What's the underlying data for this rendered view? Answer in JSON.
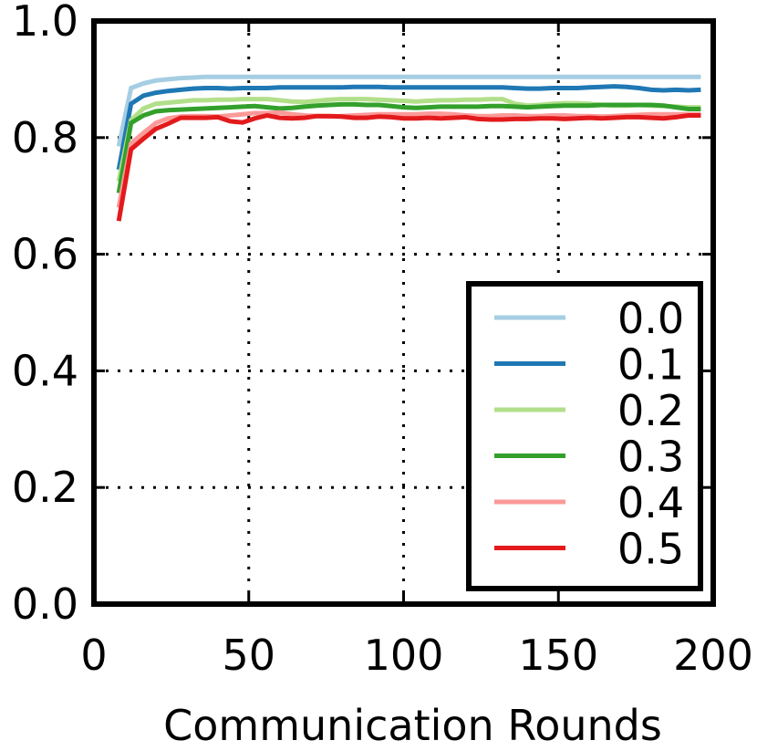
{
  "chart_data": {
    "type": "line",
    "title": "",
    "xlabel": "Communication Rounds",
    "ylabel": "",
    "xlim": [
      0,
      200
    ],
    "ylim": [
      0.0,
      1.0
    ],
    "x_ticks": [
      0,
      50,
      100,
      150,
      200
    ],
    "y_ticks": [
      0.0,
      0.2,
      0.4,
      0.6,
      0.8,
      1.0
    ],
    "x_tick_labels": [
      "0",
      "50",
      "100",
      "150",
      "200"
    ],
    "y_tick_labels": [
      "0.0",
      "0.2",
      "0.4",
      "0.6",
      "0.8",
      "1.0"
    ],
    "grid": true,
    "legend_position": "lower-right",
    "x": [
      8,
      12,
      16,
      20,
      24,
      28,
      32,
      36,
      40,
      44,
      48,
      52,
      56,
      60,
      64,
      68,
      72,
      76,
      80,
      84,
      88,
      92,
      96,
      100,
      104,
      108,
      112,
      116,
      120,
      124,
      128,
      132,
      136,
      140,
      144,
      148,
      152,
      156,
      160,
      164,
      168,
      172,
      176,
      180,
      184,
      188,
      192,
      196
    ],
    "series": [
      {
        "name": "0.0",
        "color": "#a6cee3",
        "values": [
          0.785,
          0.885,
          0.893,
          0.898,
          0.9,
          0.902,
          0.903,
          0.904,
          0.904,
          0.904,
          0.904,
          0.904,
          0.904,
          0.904,
          0.904,
          0.904,
          0.904,
          0.904,
          0.904,
          0.904,
          0.904,
          0.904,
          0.904,
          0.904,
          0.904,
          0.904,
          0.904,
          0.904,
          0.904,
          0.904,
          0.904,
          0.904,
          0.904,
          0.904,
          0.904,
          0.904,
          0.904,
          0.904,
          0.904,
          0.904,
          0.904,
          0.904,
          0.904,
          0.904,
          0.904,
          0.904,
          0.904,
          0.904
        ]
      },
      {
        "name": "0.1",
        "color": "#1f78b4",
        "values": [
          0.745,
          0.858,
          0.872,
          0.877,
          0.88,
          0.882,
          0.884,
          0.885,
          0.885,
          0.884,
          0.885,
          0.885,
          0.885,
          0.886,
          0.886,
          0.886,
          0.886,
          0.886,
          0.886,
          0.887,
          0.887,
          0.887,
          0.886,
          0.886,
          0.886,
          0.886,
          0.886,
          0.886,
          0.886,
          0.886,
          0.886,
          0.886,
          0.885,
          0.884,
          0.884,
          0.885,
          0.885,
          0.885,
          0.886,
          0.887,
          0.888,
          0.887,
          0.885,
          0.882,
          0.881,
          0.882,
          0.881,
          0.882
        ]
      },
      {
        "name": "0.2",
        "color": "#b2df8a",
        "values": [
          0.725,
          0.83,
          0.85,
          0.858,
          0.86,
          0.862,
          0.864,
          0.864,
          0.865,
          0.865,
          0.866,
          0.866,
          0.866,
          0.864,
          0.862,
          0.861,
          0.863,
          0.865,
          0.866,
          0.866,
          0.866,
          0.865,
          0.864,
          0.863,
          0.862,
          0.863,
          0.864,
          0.864,
          0.865,
          0.865,
          0.866,
          0.866,
          0.858,
          0.855,
          0.856,
          0.858,
          0.859,
          0.859,
          0.858,
          0.856,
          0.855,
          0.855,
          0.856,
          0.855,
          0.854,
          0.853,
          0.852,
          0.852
        ]
      },
      {
        "name": "0.3",
        "color": "#33a02c",
        "values": [
          0.705,
          0.825,
          0.838,
          0.845,
          0.847,
          0.848,
          0.849,
          0.85,
          0.851,
          0.852,
          0.853,
          0.854,
          0.852,
          0.85,
          0.851,
          0.853,
          0.855,
          0.856,
          0.857,
          0.857,
          0.856,
          0.856,
          0.854,
          0.852,
          0.851,
          0.852,
          0.853,
          0.853,
          0.853,
          0.853,
          0.854,
          0.854,
          0.853,
          0.852,
          0.853,
          0.854,
          0.855,
          0.855,
          0.855,
          0.856,
          0.856,
          0.856,
          0.856,
          0.856,
          0.855,
          0.852,
          0.849,
          0.849
        ]
      },
      {
        "name": "0.4",
        "color": "#fb9a99",
        "values": [
          0.68,
          0.79,
          0.808,
          0.825,
          0.833,
          0.836,
          0.837,
          0.837,
          0.836,
          0.838,
          0.84,
          0.842,
          0.842,
          0.843,
          0.84,
          0.838,
          0.837,
          0.836,
          0.837,
          0.838,
          0.839,
          0.84,
          0.84,
          0.84,
          0.84,
          0.841,
          0.841,
          0.84,
          0.838,
          0.837,
          0.837,
          0.838,
          0.838,
          0.837,
          0.837,
          0.838,
          0.838,
          0.837,
          0.837,
          0.836,
          0.837,
          0.838,
          0.839,
          0.84,
          0.84,
          0.84,
          0.84,
          0.84
        ]
      },
      {
        "name": "0.5",
        "color": "#e31a1c",
        "values": [
          0.657,
          0.78,
          0.798,
          0.815,
          0.824,
          0.834,
          0.834,
          0.834,
          0.835,
          0.828,
          0.826,
          0.833,
          0.838,
          0.834,
          0.833,
          0.834,
          0.837,
          0.837,
          0.836,
          0.834,
          0.834,
          0.836,
          0.835,
          0.833,
          0.833,
          0.834,
          0.833,
          0.834,
          0.835,
          0.832,
          0.831,
          0.831,
          0.832,
          0.832,
          0.833,
          0.833,
          0.832,
          0.833,
          0.834,
          0.833,
          0.834,
          0.835,
          0.835,
          0.834,
          0.833,
          0.835,
          0.838,
          0.838
        ]
      }
    ]
  }
}
